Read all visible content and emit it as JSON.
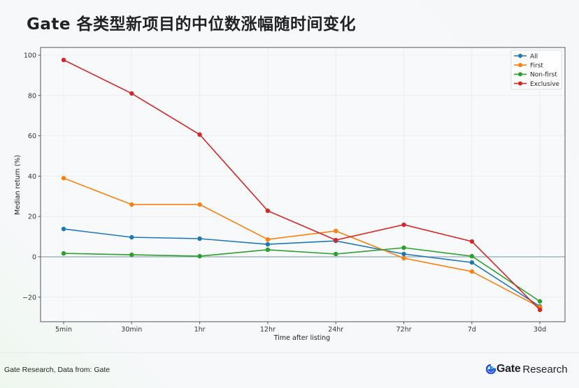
{
  "header": {
    "title": "Gate 各类型新项目的中位数涨幅随时间变化"
  },
  "footer": {
    "source": "Gate Research, Data from: Gate",
    "brand_gate": "Gate",
    "brand_research": "Research",
    "brand_icon": "gate-logo-icon"
  },
  "chart_data": {
    "type": "line",
    "title": "Gate 各类型新项目的中位数涨幅随时间变化",
    "xlabel": "Time after listing",
    "ylabel": "Median return (%)",
    "categories": [
      "5min",
      "30min",
      "1hr",
      "12hr",
      "24hr",
      "72hr",
      "7d",
      "30d"
    ],
    "ylim": [
      -32,
      104
    ],
    "yticks": [
      -20,
      0,
      20,
      40,
      60,
      80,
      100
    ],
    "ytick_labels": [
      "−20",
      "0",
      "20",
      "40",
      "60",
      "80",
      "100"
    ],
    "grid": true,
    "legend_position": "upper right",
    "zero_line": true,
    "series": [
      {
        "name": "All",
        "color": "#1f77b4",
        "values": [
          13.8,
          9.7,
          9.0,
          6.2,
          7.9,
          1.4,
          -2.8,
          -24.6
        ]
      },
      {
        "name": "First",
        "color": "#ff7f0e",
        "values": [
          39.0,
          25.9,
          25.9,
          8.6,
          12.8,
          -0.7,
          -7.3,
          -25.0
        ]
      },
      {
        "name": "Non-first",
        "color": "#2ca02c",
        "values": [
          1.7,
          1.0,
          0.3,
          3.5,
          1.4,
          4.5,
          0.3,
          -22.1
        ]
      },
      {
        "name": "Exclusive",
        "color": "#d62728",
        "values": [
          97.6,
          81.0,
          60.6,
          22.8,
          8.3,
          15.9,
          7.6,
          -26.3
        ]
      }
    ]
  }
}
